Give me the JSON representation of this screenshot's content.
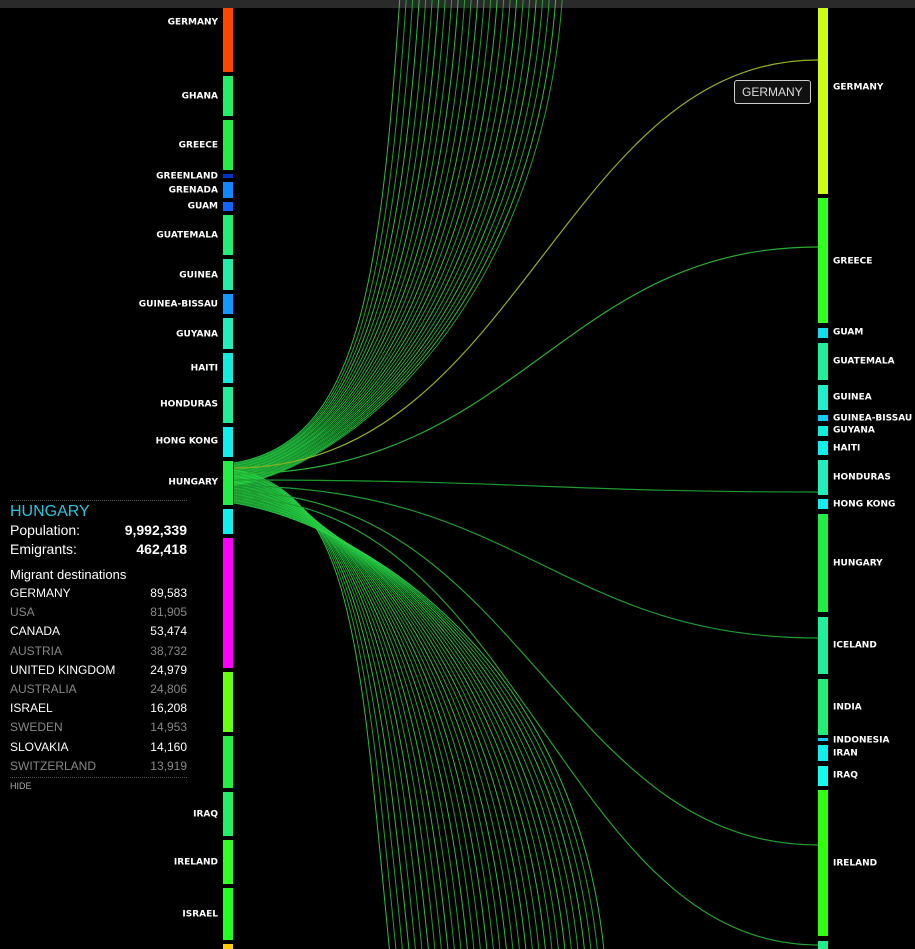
{
  "left_nodes": [
    "GERMANY",
    "GHANA",
    "GREECE",
    "GREENLAND",
    "GRENADA",
    "GUAM",
    "GUATEMALA",
    "GUINEA",
    "GUINEA-BISSAU",
    "GUYANA",
    "HAITI",
    "HONDURAS",
    "HONG KONG",
    "HUNGARY",
    "IRAQ",
    "IRELAND",
    "ISRAEL"
  ],
  "right_nodes": [
    "GERMANY",
    "GREECE",
    "GUAM",
    "GUATEMALA",
    "GUINEA",
    "GUINEA-BISSAU",
    "GUYANA",
    "HAITI",
    "HONDURAS",
    "HONG KONG",
    "HUNGARY",
    "ICELAND",
    "INDIA",
    "INDONESIA",
    "IRAN",
    "IRAQ",
    "IRELAND"
  ],
  "panel": {
    "title": "HUNGARY",
    "population_label": "Population:",
    "population": "9,992,339",
    "emigrants_label": "Emigrants:",
    "emigrants": "462,418",
    "destinations_heading": "Migrant destinations",
    "destinations": [
      {
        "country": "GERMANY",
        "count": "89,583"
      },
      {
        "country": "USA",
        "count": "81,905"
      },
      {
        "country": "CANADA",
        "count": "53,474"
      },
      {
        "country": "AUSTRIA",
        "count": "38,732"
      },
      {
        "country": "UNITED KINGDOM",
        "count": "24,979"
      },
      {
        "country": "AUSTRALIA",
        "count": "24,806"
      },
      {
        "country": "ISRAEL",
        "count": "16,208"
      },
      {
        "country": "SWEDEN",
        "count": "14,953"
      },
      {
        "country": "SLOVAKIA",
        "count": "14,160"
      },
      {
        "country": "SWITZERLAND",
        "count": "13,919"
      }
    ],
    "hide": "HIDE"
  },
  "tooltip": "GERMANY"
}
